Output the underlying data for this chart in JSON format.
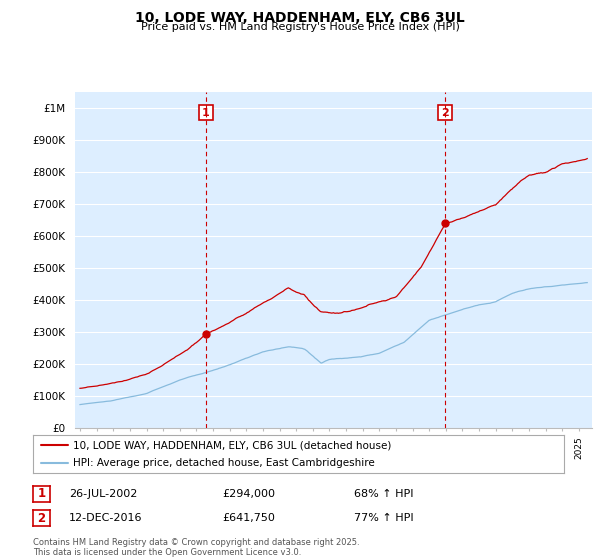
{
  "title_line1": "10, LODE WAY, HADDENHAM, ELY, CB6 3UL",
  "title_line2": "Price paid vs. HM Land Registry's House Price Index (HPI)",
  "red_label": "10, LODE WAY, HADDENHAM, ELY, CB6 3UL (detached house)",
  "blue_label": "HPI: Average price, detached house, East Cambridgeshire",
  "footer": "Contains HM Land Registry data © Crown copyright and database right 2025.\nThis data is licensed under the Open Government Licence v3.0.",
  "annotation1_label": "1",
  "annotation1_date": "26-JUL-2002",
  "annotation1_price": "£294,000",
  "annotation1_hpi": "68% ↑ HPI",
  "annotation2_label": "2",
  "annotation2_date": "12-DEC-2016",
  "annotation2_price": "£641,750",
  "annotation2_hpi": "77% ↑ HPI",
  "ylim": [
    0,
    1050000
  ],
  "yticks": [
    0,
    100000,
    200000,
    300000,
    400000,
    500000,
    600000,
    700000,
    800000,
    900000,
    1000000
  ],
  "ytick_labels": [
    "£0",
    "£100K",
    "£200K",
    "£300K",
    "£400K",
    "£500K",
    "£600K",
    "£700K",
    "£800K",
    "£900K",
    "£1M"
  ],
  "background_color": "#ffffff",
  "plot_bg_color": "#ddeeff",
  "grid_color": "#ffffff",
  "red_color": "#cc0000",
  "blue_color": "#88bbdd",
  "vline_color": "#cc0000",
  "annotation_box_color": "#cc0000",
  "marker1_year": 2002.57,
  "marker1_y": 294000,
  "marker2_year": 2016.95,
  "marker2_y": 641750,
  "vline1_x": 2002.57,
  "vline2_x": 2016.95,
  "xlim_left": 1994.7,
  "xlim_right": 2025.8
}
